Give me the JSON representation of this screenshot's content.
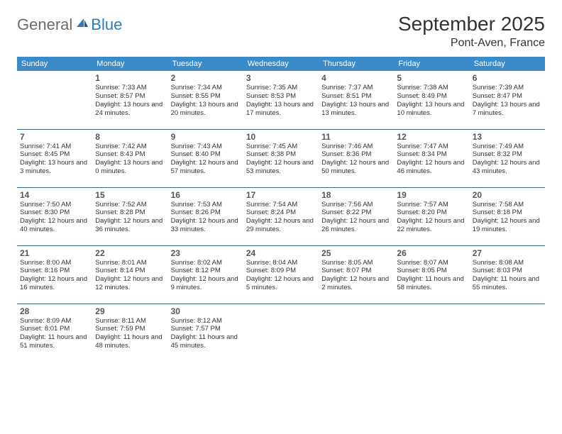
{
  "brand": {
    "part1": "General",
    "part2": "Blue"
  },
  "title": "September 2025",
  "location": "Pont-Aven, France",
  "colors": {
    "header_bg": "#3b8bc9",
    "header_fg": "#ffffff",
    "border": "#3b6a8f",
    "logo_gray": "#6b6b6b",
    "logo_blue": "#2b7bbf"
  },
  "weekdays": [
    "Sunday",
    "Monday",
    "Tuesday",
    "Wednesday",
    "Thursday",
    "Friday",
    "Saturday"
  ],
  "weeks": [
    [
      null,
      {
        "n": "1",
        "sr": "Sunrise: 7:33 AM",
        "ss": "Sunset: 8:57 PM",
        "dl": "Daylight: 13 hours and 24 minutes."
      },
      {
        "n": "2",
        "sr": "Sunrise: 7:34 AM",
        "ss": "Sunset: 8:55 PM",
        "dl": "Daylight: 13 hours and 20 minutes."
      },
      {
        "n": "3",
        "sr": "Sunrise: 7:35 AM",
        "ss": "Sunset: 8:53 PM",
        "dl": "Daylight: 13 hours and 17 minutes."
      },
      {
        "n": "4",
        "sr": "Sunrise: 7:37 AM",
        "ss": "Sunset: 8:51 PM",
        "dl": "Daylight: 13 hours and 13 minutes."
      },
      {
        "n": "5",
        "sr": "Sunrise: 7:38 AM",
        "ss": "Sunset: 8:49 PM",
        "dl": "Daylight: 13 hours and 10 minutes."
      },
      {
        "n": "6",
        "sr": "Sunrise: 7:39 AM",
        "ss": "Sunset: 8:47 PM",
        "dl": "Daylight: 13 hours and 7 minutes."
      }
    ],
    [
      {
        "n": "7",
        "sr": "Sunrise: 7:41 AM",
        "ss": "Sunset: 8:45 PM",
        "dl": "Daylight: 13 hours and 3 minutes."
      },
      {
        "n": "8",
        "sr": "Sunrise: 7:42 AM",
        "ss": "Sunset: 8:43 PM",
        "dl": "Daylight: 13 hours and 0 minutes."
      },
      {
        "n": "9",
        "sr": "Sunrise: 7:43 AM",
        "ss": "Sunset: 8:40 PM",
        "dl": "Daylight: 12 hours and 57 minutes."
      },
      {
        "n": "10",
        "sr": "Sunrise: 7:45 AM",
        "ss": "Sunset: 8:38 PM",
        "dl": "Daylight: 12 hours and 53 minutes."
      },
      {
        "n": "11",
        "sr": "Sunrise: 7:46 AM",
        "ss": "Sunset: 8:36 PM",
        "dl": "Daylight: 12 hours and 50 minutes."
      },
      {
        "n": "12",
        "sr": "Sunrise: 7:47 AM",
        "ss": "Sunset: 8:34 PM",
        "dl": "Daylight: 12 hours and 46 minutes."
      },
      {
        "n": "13",
        "sr": "Sunrise: 7:49 AM",
        "ss": "Sunset: 8:32 PM",
        "dl": "Daylight: 12 hours and 43 minutes."
      }
    ],
    [
      {
        "n": "14",
        "sr": "Sunrise: 7:50 AM",
        "ss": "Sunset: 8:30 PM",
        "dl": "Daylight: 12 hours and 40 minutes."
      },
      {
        "n": "15",
        "sr": "Sunrise: 7:52 AM",
        "ss": "Sunset: 8:28 PM",
        "dl": "Daylight: 12 hours and 36 minutes."
      },
      {
        "n": "16",
        "sr": "Sunrise: 7:53 AM",
        "ss": "Sunset: 8:26 PM",
        "dl": "Daylight: 12 hours and 33 minutes."
      },
      {
        "n": "17",
        "sr": "Sunrise: 7:54 AM",
        "ss": "Sunset: 8:24 PM",
        "dl": "Daylight: 12 hours and 29 minutes."
      },
      {
        "n": "18",
        "sr": "Sunrise: 7:56 AM",
        "ss": "Sunset: 8:22 PM",
        "dl": "Daylight: 12 hours and 26 minutes."
      },
      {
        "n": "19",
        "sr": "Sunrise: 7:57 AM",
        "ss": "Sunset: 8:20 PM",
        "dl": "Daylight: 12 hours and 22 minutes."
      },
      {
        "n": "20",
        "sr": "Sunrise: 7:58 AM",
        "ss": "Sunset: 8:18 PM",
        "dl": "Daylight: 12 hours and 19 minutes."
      }
    ],
    [
      {
        "n": "21",
        "sr": "Sunrise: 8:00 AM",
        "ss": "Sunset: 8:16 PM",
        "dl": "Daylight: 12 hours and 16 minutes."
      },
      {
        "n": "22",
        "sr": "Sunrise: 8:01 AM",
        "ss": "Sunset: 8:14 PM",
        "dl": "Daylight: 12 hours and 12 minutes."
      },
      {
        "n": "23",
        "sr": "Sunrise: 8:02 AM",
        "ss": "Sunset: 8:12 PM",
        "dl": "Daylight: 12 hours and 9 minutes."
      },
      {
        "n": "24",
        "sr": "Sunrise: 8:04 AM",
        "ss": "Sunset: 8:09 PM",
        "dl": "Daylight: 12 hours and 5 minutes."
      },
      {
        "n": "25",
        "sr": "Sunrise: 8:05 AM",
        "ss": "Sunset: 8:07 PM",
        "dl": "Daylight: 12 hours and 2 minutes."
      },
      {
        "n": "26",
        "sr": "Sunrise: 8:07 AM",
        "ss": "Sunset: 8:05 PM",
        "dl": "Daylight: 11 hours and 58 minutes."
      },
      {
        "n": "27",
        "sr": "Sunrise: 8:08 AM",
        "ss": "Sunset: 8:03 PM",
        "dl": "Daylight: 11 hours and 55 minutes."
      }
    ],
    [
      {
        "n": "28",
        "sr": "Sunrise: 8:09 AM",
        "ss": "Sunset: 8:01 PM",
        "dl": "Daylight: 11 hours and 51 minutes."
      },
      {
        "n": "29",
        "sr": "Sunrise: 8:11 AM",
        "ss": "Sunset: 7:59 PM",
        "dl": "Daylight: 11 hours and 48 minutes."
      },
      {
        "n": "30",
        "sr": "Sunrise: 8:12 AM",
        "ss": "Sunset: 7:57 PM",
        "dl": "Daylight: 11 hours and 45 minutes."
      },
      null,
      null,
      null,
      null
    ]
  ]
}
